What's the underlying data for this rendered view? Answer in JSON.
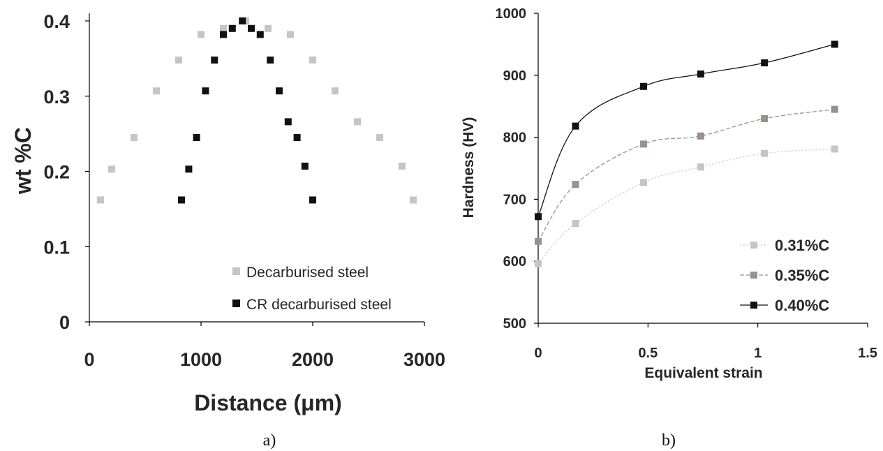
{
  "chart_data": [
    {
      "type": "scatter",
      "panel_label": "a)",
      "xlabel": "Distance (μm)",
      "ylabel": "wt %C",
      "xlim": [
        0,
        3000
      ],
      "ylim": [
        0,
        0.4
      ],
      "xticks": [
        "0",
        "1000",
        "2000",
        "3000"
      ],
      "yticks": [
        "0",
        "0.1",
        "0.2",
        "0.3",
        "0.4"
      ],
      "legend_position": "bottom-right",
      "series": [
        {
          "name": "Decarburised steel",
          "color": "#c8c4c4",
          "marker": "square",
          "points": [
            [
              100,
              0.162
            ],
            [
              200,
              0.203
            ],
            [
              400,
              0.245
            ],
            [
              600,
              0.307
            ],
            [
              800,
              0.348
            ],
            [
              1000,
              0.382
            ],
            [
              1200,
              0.39
            ],
            [
              1400,
              0.4
            ],
            [
              1600,
              0.39
            ],
            [
              1800,
              0.382
            ],
            [
              2000,
              0.348
            ],
            [
              2200,
              0.307
            ],
            [
              2400,
              0.266
            ],
            [
              2600,
              0.245
            ],
            [
              2800,
              0.207
            ],
            [
              2900,
              0.162
            ]
          ]
        },
        {
          "name": "CR decarburised steel",
          "color": "#111111",
          "marker": "square",
          "points": [
            [
              825,
              0.162
            ],
            [
              890,
              0.203
            ],
            [
              960,
              0.245
            ],
            [
              1040,
              0.307
            ],
            [
              1120,
              0.348
            ],
            [
              1200,
              0.382
            ],
            [
              1280,
              0.39
            ],
            [
              1370,
              0.4
            ],
            [
              1450,
              0.39
            ],
            [
              1530,
              0.382
            ],
            [
              1620,
              0.348
            ],
            [
              1700,
              0.307
            ],
            [
              1780,
              0.266
            ],
            [
              1860,
              0.245
            ],
            [
              1930,
              0.207
            ],
            [
              2000,
              0.162
            ]
          ]
        }
      ]
    },
    {
      "type": "line",
      "panel_label": "b)",
      "xlabel": "Equivalent strain",
      "ylabel": "Hardness (HV)",
      "xlim": [
        0,
        1.5
      ],
      "ylim": [
        500,
        1000
      ],
      "xticks": [
        "0",
        "0.5",
        "1",
        "1.5"
      ],
      "yticks": [
        "500",
        "600",
        "700",
        "800",
        "900",
        "1000"
      ],
      "legend_position": "bottom-right",
      "x": [
        0,
        0.17,
        0.48,
        0.74,
        1.03,
        1.35
      ],
      "series": [
        {
          "name": "0.31%C",
          "color": "#c8c4c4",
          "line": "dotted",
          "values": [
            596,
            661,
            727,
            752,
            774,
            781
          ]
        },
        {
          "name": "0.35%C",
          "color": "#9a9090",
          "line": "dashed",
          "values": [
            632,
            724,
            789,
            802,
            830,
            845
          ]
        },
        {
          "name": "0.40%C",
          "color": "#111111",
          "line": "solid",
          "values": [
            672,
            818,
            882,
            902,
            920,
            950
          ]
        }
      ]
    }
  ]
}
